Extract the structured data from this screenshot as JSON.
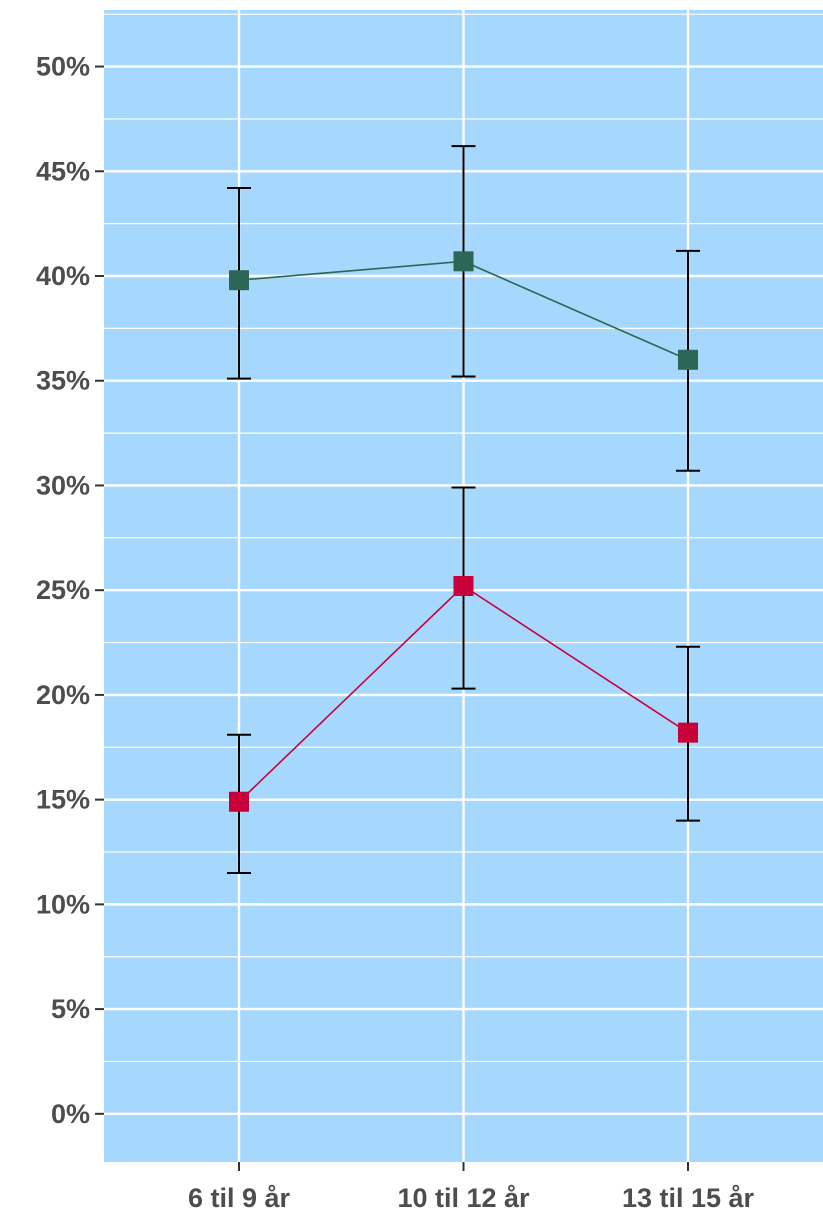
{
  "chart_data": {
    "type": "line",
    "title": "",
    "xlabel": "",
    "ylabel": "",
    "categories": [
      "6 til 9 år",
      "10 til 12 år",
      "13 til 15 år"
    ],
    "ylim": [
      -2.3,
      52.7
    ],
    "yticks": [
      0,
      5,
      10,
      15,
      20,
      25,
      30,
      35,
      40,
      45,
      50
    ],
    "ytick_labels": [
      "0%",
      "5%",
      "10%",
      "15%",
      "20%",
      "25%",
      "30%",
      "35%",
      "40%",
      "45%",
      "50%"
    ],
    "grid": true,
    "legend": "none",
    "colors": {
      "panel": "#a6d8fe",
      "grid": "#ffffff",
      "errorbar": "#000000",
      "axis_text": "#4d4d4d"
    },
    "series": [
      {
        "color": "#2c6656",
        "values": [
          39.8,
          40.7,
          36.0
        ],
        "lower": [
          35.1,
          35.2,
          30.7
        ],
        "upper": [
          44.2,
          46.2,
          41.2
        ]
      },
      {
        "color": "#c8003a",
        "values": [
          14.9,
          25.2,
          18.2
        ],
        "lower": [
          11.5,
          20.3,
          14.0
        ],
        "upper": [
          18.1,
          29.9,
          22.3
        ]
      }
    ]
  }
}
